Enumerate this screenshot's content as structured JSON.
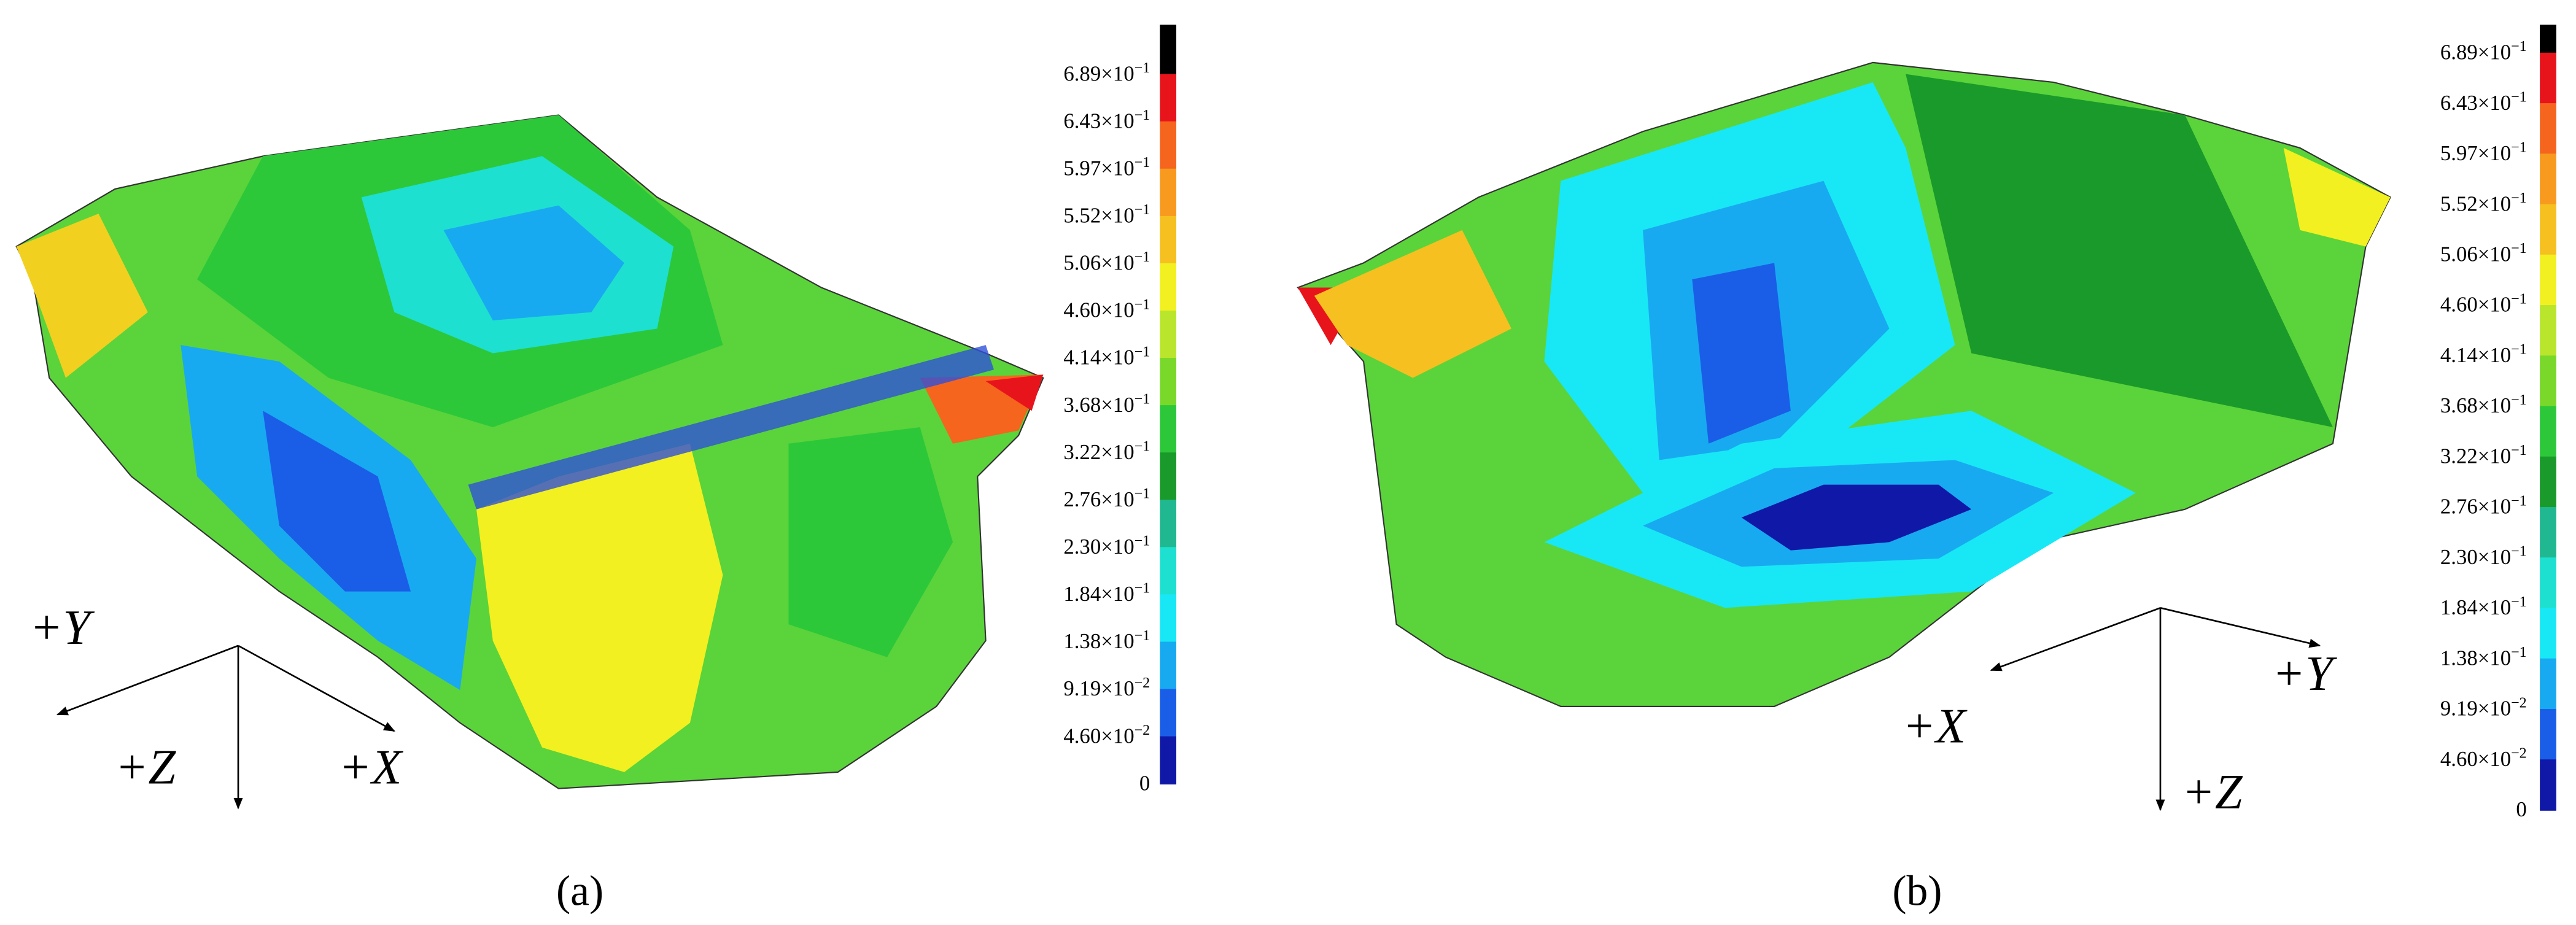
{
  "panels": [
    {
      "caption": "(a)",
      "axes": {
        "y": "+Y",
        "z": "+Z",
        "x": "+X"
      },
      "colorbar": {
        "labels": [
          {
            "base": "6.89×10",
            "exp": "−1"
          },
          {
            "base": "6.43×10",
            "exp": "−1"
          },
          {
            "base": "5.97×10",
            "exp": "−1"
          },
          {
            "base": "5.52×10",
            "exp": "−1"
          },
          {
            "base": "5.06×10",
            "exp": "−1"
          },
          {
            "base": "4.60×10",
            "exp": "−1"
          },
          {
            "base": "4.14×10",
            "exp": "−1"
          },
          {
            "base": "3.68×10",
            "exp": "−1"
          },
          {
            "base": "3.22×10",
            "exp": "−1"
          },
          {
            "base": "2.76×10",
            "exp": "−1"
          },
          {
            "base": "2.30×10",
            "exp": "−1"
          },
          {
            "base": "1.84×10",
            "exp": "−1"
          },
          {
            "base": "1.38×10",
            "exp": "−1"
          },
          {
            "base": "9.19×10",
            "exp": "−2"
          },
          {
            "base": "4.60×10",
            "exp": "−2"
          },
          {
            "base": "0"
          }
        ],
        "colors": [
          "#000000",
          "#e8141c",
          "#f5651e",
          "#f79a1e",
          "#f5c020",
          "#f2f020",
          "#b9e62c",
          "#7ad82a",
          "#2cc83a",
          "#1a9a2a",
          "#20b890",
          "#1ee0d0",
          "#18e8f5",
          "#18aaf0",
          "#1a5ee8",
          "#1018a8"
        ]
      }
    },
    {
      "caption": "(b)",
      "axes": {
        "y": "+Y",
        "x": "+X",
        "z": "+Z"
      },
      "colorbar": {
        "labels": [
          {
            "base": "6.89×10",
            "exp": "−1"
          },
          {
            "base": "6.43×10",
            "exp": "−1"
          },
          {
            "base": "5.97×10",
            "exp": "−1"
          },
          {
            "base": "5.52×10",
            "exp": "−1"
          },
          {
            "base": "5.06×10",
            "exp": "−1"
          },
          {
            "base": "4.60×10",
            "exp": "−1"
          },
          {
            "base": "4.14×10",
            "exp": "−1"
          },
          {
            "base": "3.68×10",
            "exp": "−1"
          },
          {
            "base": "3.22×10",
            "exp": "−1"
          },
          {
            "base": "2.76×10",
            "exp": "−1"
          },
          {
            "base": "2.30×10",
            "exp": "−1"
          },
          {
            "base": "1.84×10",
            "exp": "−1"
          },
          {
            "base": "1.38×10",
            "exp": "−1"
          },
          {
            "base": "9.19×10",
            "exp": "−2"
          },
          {
            "base": "4.60×10",
            "exp": "−2"
          },
          {
            "base": "0"
          }
        ],
        "colors": [
          "#000000",
          "#e8141c",
          "#f5651e",
          "#f79a1e",
          "#f5c020",
          "#f2f020",
          "#b9e62c",
          "#7ad82a",
          "#2cc83a",
          "#1a9a2a",
          "#20b890",
          "#1ee0d0",
          "#18e8f5",
          "#18aaf0",
          "#1a5ee8",
          "#1018a8"
        ]
      }
    }
  ]
}
